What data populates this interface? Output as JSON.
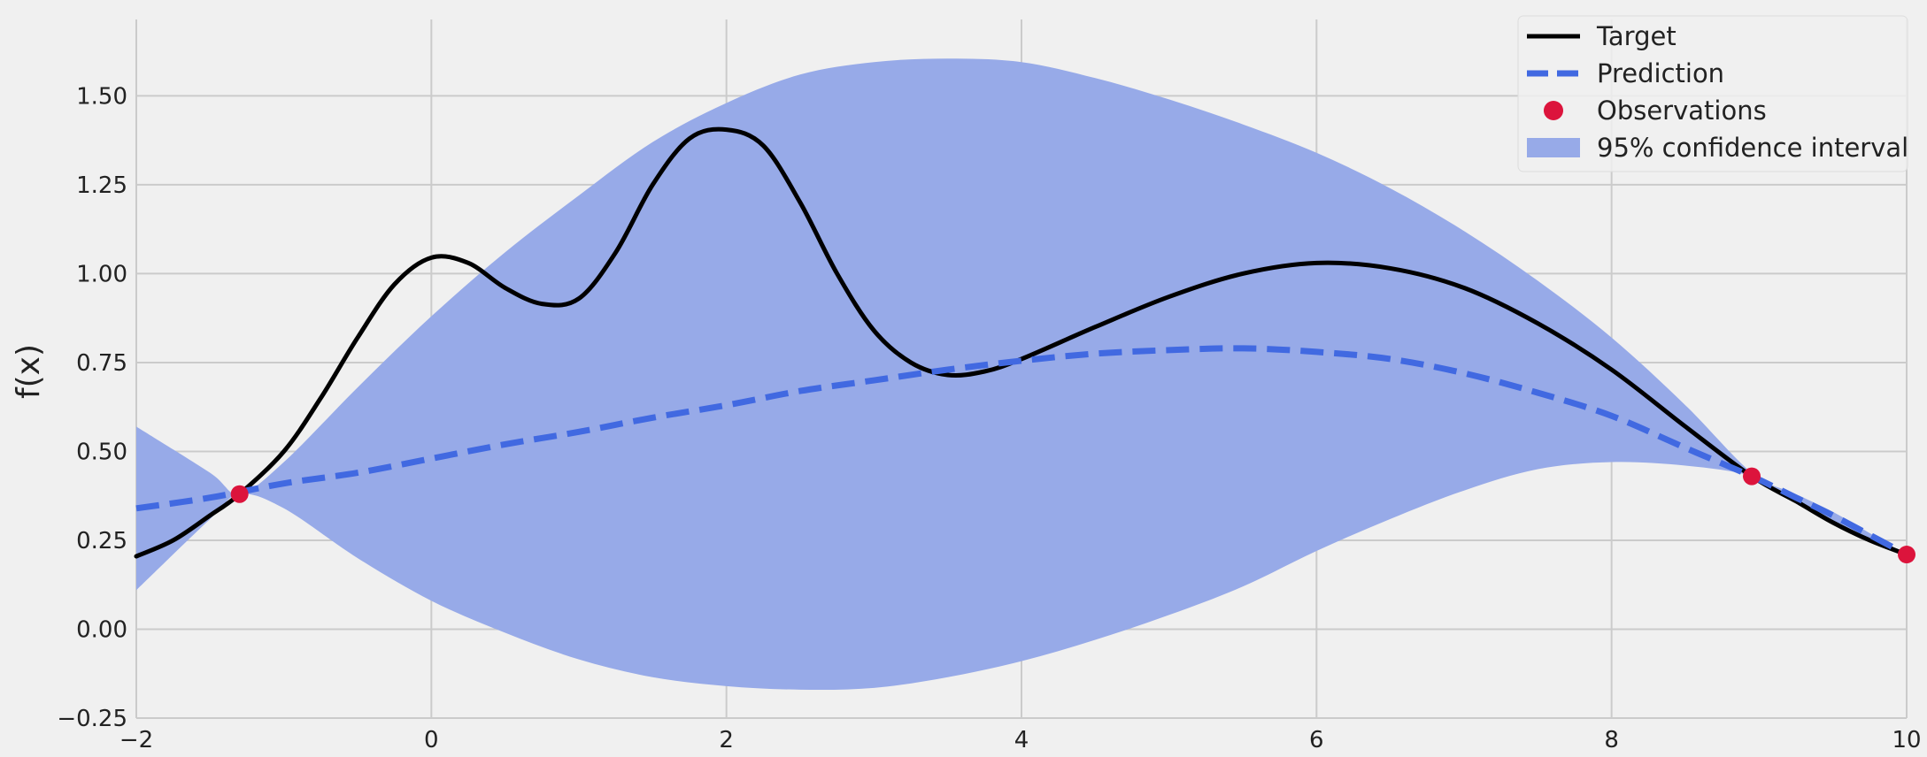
{
  "chart_data": {
    "type": "line",
    "title": "",
    "xlabel": "",
    "ylabel": "f(x)",
    "xlim": [
      -2,
      10
    ],
    "ylim": [
      -0.25,
      1.7
    ],
    "grid": true,
    "legend_position": "top-right",
    "x_ticks": [
      -2,
      0,
      2,
      4,
      6,
      8,
      10
    ],
    "x_tick_labels": [
      "−2",
      "0",
      "2",
      "4",
      "6",
      "8",
      "10"
    ],
    "y_ticks": [
      -0.25,
      0.0,
      0.25,
      0.5,
      0.75,
      1.0,
      1.25,
      1.5
    ],
    "y_tick_labels": [
      "−0.25",
      "0.00",
      "0.25",
      "0.50",
      "0.75",
      "1.00",
      "1.25",
      "1.50"
    ],
    "colors": {
      "background": "#f0f0f0",
      "grid": "#cbcbcb",
      "target": "#000000",
      "prediction": "#4169e1",
      "observations": "#dc143c",
      "confidence": "#97aae8"
    },
    "series": [
      {
        "name": "Target",
        "style": "solid",
        "x": [
          -2,
          -1.75,
          -1.5,
          -1.3,
          -1.0,
          -0.75,
          -0.5,
          -0.25,
          0.0,
          0.25,
          0.5,
          0.75,
          1.0,
          1.25,
          1.5,
          1.75,
          2.0,
          2.25,
          2.5,
          2.75,
          3.0,
          3.25,
          3.5,
          3.75,
          4.0,
          4.5,
          5.0,
          5.5,
          6.0,
          6.5,
          7.0,
          7.5,
          8.0,
          8.5,
          8.95,
          9.25,
          9.5,
          9.75,
          10.0
        ],
        "y": [
          0.205,
          0.25,
          0.32,
          0.38,
          0.5,
          0.65,
          0.82,
          0.97,
          1.045,
          1.03,
          0.96,
          0.915,
          0.93,
          1.06,
          1.25,
          1.38,
          1.405,
          1.36,
          1.2,
          1.0,
          0.84,
          0.75,
          0.715,
          0.725,
          0.76,
          0.85,
          0.935,
          1.0,
          1.03,
          1.015,
          0.96,
          0.86,
          0.73,
          0.57,
          0.43,
          0.36,
          0.3,
          0.25,
          0.21
        ]
      },
      {
        "name": "Prediction",
        "style": "dashed",
        "x": [
          -2,
          -1.5,
          -1.0,
          -0.5,
          0.0,
          0.5,
          1.0,
          1.5,
          2.0,
          2.5,
          3.0,
          3.5,
          4.0,
          4.5,
          5.0,
          5.5,
          6.0,
          6.5,
          7.0,
          7.5,
          8.0,
          8.5,
          8.95,
          9.25,
          9.5,
          9.75,
          10.0
        ],
        "y": [
          0.34,
          0.37,
          0.41,
          0.44,
          0.48,
          0.52,
          0.555,
          0.595,
          0.63,
          0.67,
          0.7,
          0.73,
          0.755,
          0.775,
          0.785,
          0.79,
          0.78,
          0.76,
          0.72,
          0.665,
          0.6,
          0.51,
          0.43,
          0.37,
          0.32,
          0.265,
          0.21
        ]
      },
      {
        "name": "Observations",
        "style": "markers",
        "x": [
          -1.3,
          8.95,
          10.0
        ],
        "y": [
          0.38,
          0.43,
          0.21
        ]
      }
    ],
    "band": {
      "name": "95% confidence interval",
      "x": [
        -2,
        -1.5,
        -1.3,
        -1.0,
        -0.5,
        0.0,
        0.5,
        1.0,
        1.5,
        2.0,
        2.5,
        3.0,
        3.5,
        4.0,
        4.5,
        5.0,
        5.5,
        6.0,
        6.5,
        7.0,
        7.5,
        8.0,
        8.5,
        8.95,
        9.25,
        9.5,
        9.75,
        10.0
      ],
      "upper": [
        0.57,
        0.44,
        0.38,
        0.47,
        0.68,
        0.88,
        1.06,
        1.22,
        1.37,
        1.48,
        1.56,
        1.595,
        1.605,
        1.595,
        1.55,
        1.49,
        1.42,
        1.34,
        1.24,
        1.12,
        0.98,
        0.82,
        0.63,
        0.44,
        0.38,
        0.33,
        0.27,
        0.21
      ],
      "lower": [
        0.11,
        0.31,
        0.38,
        0.34,
        0.2,
        0.08,
        -0.01,
        -0.085,
        -0.135,
        -0.16,
        -0.17,
        -0.165,
        -0.135,
        -0.09,
        -0.03,
        0.04,
        0.12,
        0.22,
        0.31,
        0.39,
        0.45,
        0.47,
        0.46,
        0.43,
        0.36,
        0.3,
        0.255,
        0.21
      ]
    }
  }
}
